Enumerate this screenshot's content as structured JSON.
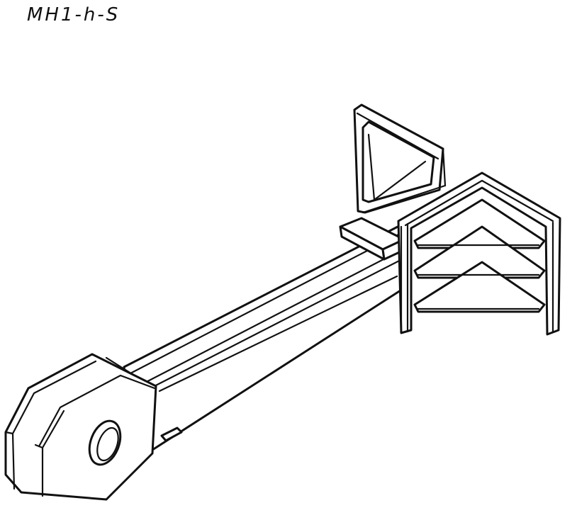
{
  "label": "MH1-h-S",
  "colors": {
    "ink": "#111111",
    "paper": "#ffffff"
  }
}
